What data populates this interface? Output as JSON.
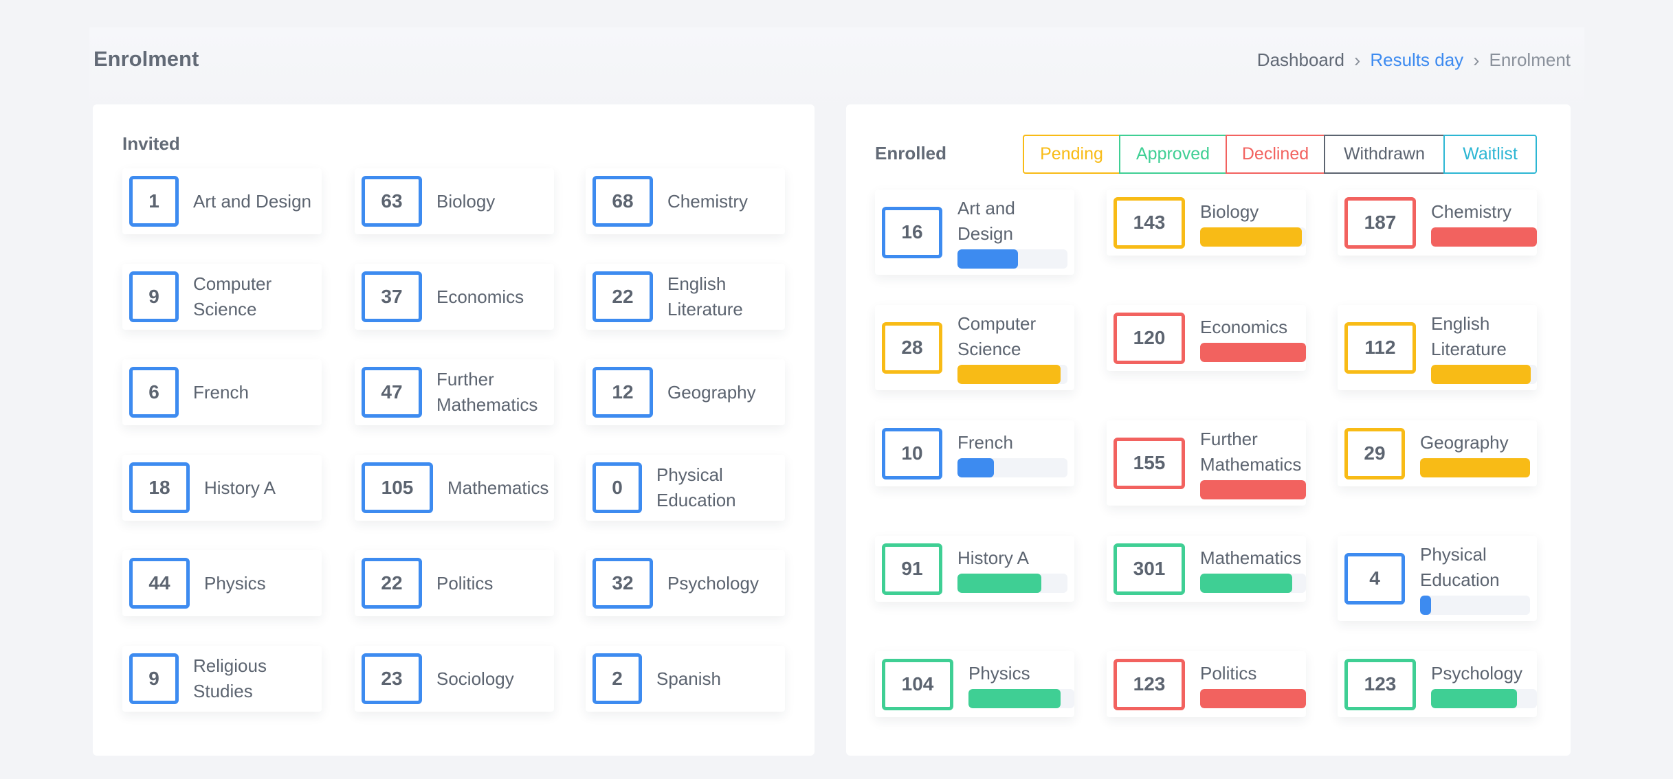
{
  "page": {
    "title": "Enrolment"
  },
  "breadcrumb": {
    "items": [
      "Dashboard",
      "Results day",
      "Enrolment"
    ]
  },
  "colors": {
    "blue": "#3d8bf0",
    "yellow": "#f8bb16",
    "red": "#f2625f",
    "green": "#3fcf94",
    "dark": "#5c6470",
    "teal": "#2cb6d3"
  },
  "invited": {
    "title": "Invited",
    "items": [
      {
        "count": "1",
        "subject": [
          "Art and Design"
        ]
      },
      {
        "count": "63",
        "subject": [
          "Biology"
        ]
      },
      {
        "count": "68",
        "subject": [
          "Chemistry"
        ]
      },
      {
        "count": "9",
        "subject": [
          "Computer",
          "Science"
        ]
      },
      {
        "count": "37",
        "subject": [
          "Economics"
        ]
      },
      {
        "count": "22",
        "subject": [
          "English",
          "Literature"
        ]
      },
      {
        "count": "6",
        "subject": [
          "French"
        ]
      },
      {
        "count": "47",
        "subject": [
          "Further",
          "Mathematics"
        ]
      },
      {
        "count": "12",
        "subject": [
          "Geography"
        ]
      },
      {
        "count": "18",
        "subject": [
          "History A"
        ]
      },
      {
        "count": "105",
        "subject": [
          "Mathematics"
        ]
      },
      {
        "count": "0",
        "subject": [
          "Physical",
          "Education"
        ]
      },
      {
        "count": "44",
        "subject": [
          "Physics"
        ]
      },
      {
        "count": "22",
        "subject": [
          "Politics"
        ]
      },
      {
        "count": "32",
        "subject": [
          "Psychology"
        ]
      },
      {
        "count": "9",
        "subject": [
          "Religious",
          "Studies"
        ]
      },
      {
        "count": "23",
        "subject": [
          "Sociology"
        ]
      },
      {
        "count": "2",
        "subject": [
          "Spanish"
        ]
      }
    ]
  },
  "enrolled": {
    "title": "Enrolled",
    "filters": [
      {
        "label": "Pending",
        "color": "#f8bb16"
      },
      {
        "label": "Approved",
        "color": "#3fcf94"
      },
      {
        "label": "Declined",
        "color": "#f2625f"
      },
      {
        "label": "Withdrawn",
        "color": "#5c6470"
      },
      {
        "label": "Waitlist",
        "color": "#2cb6d3"
      }
    ],
    "items": [
      {
        "count": "16",
        "subject": [
          "Art and",
          "Design"
        ],
        "status_color": "#3d8bf0",
        "progress": 0.55
      },
      {
        "count": "143",
        "subject": [
          "Biology"
        ],
        "status_color": "#f8bb16",
        "progress": 0.96
      },
      {
        "count": "187",
        "subject": [
          "Chemistry"
        ],
        "status_color": "#f2625f",
        "progress": 1.0
      },
      {
        "count": "28",
        "subject": [
          "Computer",
          "Science"
        ],
        "status_color": "#f8bb16",
        "progress": 0.94
      },
      {
        "count": "120",
        "subject": [
          "Economics"
        ],
        "status_color": "#f2625f",
        "progress": 1.0
      },
      {
        "count": "112",
        "subject": [
          "English",
          "Literature"
        ],
        "status_color": "#f8bb16",
        "progress": 0.94
      },
      {
        "count": "10",
        "subject": [
          "French"
        ],
        "status_color": "#3d8bf0",
        "progress": 0.33
      },
      {
        "count": "155",
        "subject": [
          "Further",
          "Mathematics"
        ],
        "status_color": "#f2625f",
        "progress": 1.0
      },
      {
        "count": "29",
        "subject": [
          "Geography"
        ],
        "status_color": "#f8bb16",
        "progress": 1.0
      },
      {
        "count": "91",
        "subject": [
          "History A"
        ],
        "status_color": "#3fcf94",
        "progress": 0.76
      },
      {
        "count": "301",
        "subject": [
          "Mathematics"
        ],
        "status_color": "#3fcf94",
        "progress": 0.87
      },
      {
        "count": "4",
        "subject": [
          "Physical",
          "Education"
        ],
        "status_color": "#3d8bf0",
        "progress": 0.1
      },
      {
        "count": "104",
        "subject": [
          "Physics"
        ],
        "status_color": "#3fcf94",
        "progress": 0.87
      },
      {
        "count": "123",
        "subject": [
          "Politics"
        ],
        "status_color": "#f2625f",
        "progress": 1.0
      },
      {
        "count": "123",
        "subject": [
          "Psychology"
        ],
        "status_color": "#3fcf94",
        "progress": 0.81
      }
    ]
  }
}
